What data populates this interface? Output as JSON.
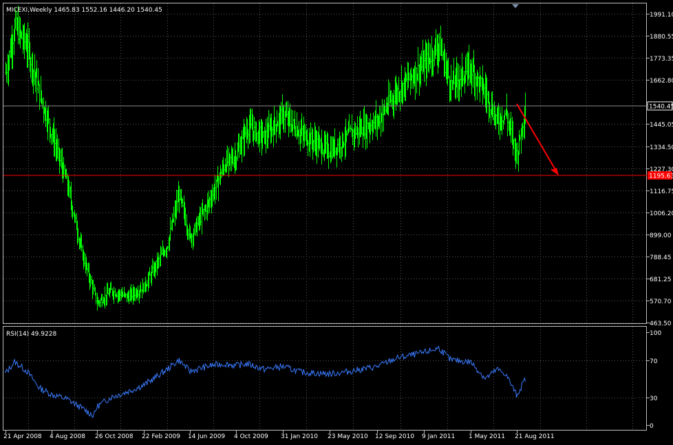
{
  "main": {
    "header": "MICEXI,Weekly  1465.83 1552.16 1446.20 1540.45",
    "symbol": "MICEXI",
    "timeframe": "Weekly",
    "ohlc": {
      "open": 1465.83,
      "high": 1552.16,
      "low": 1446.2,
      "close": 1540.45
    },
    "current_price_label": "1540.45",
    "level_label": "1195.63",
    "level_value": 1195.63,
    "y_ticks": [
      "1991.10",
      "1880.55",
      "1773.35",
      "1662.80",
      "1540.45",
      "1445.05",
      "1334.50",
      "1227.30",
      "1116.75",
      "1006.20",
      "899.00",
      "788.45",
      "681.25",
      "570.70",
      "463.50"
    ],
    "y_range": [
      463.5,
      1991.1
    ]
  },
  "rsi": {
    "header": "RSI(14) 49.9228",
    "period": 14,
    "value": 49.9228,
    "y_ticks": [
      "100",
      "70",
      "30",
      "0"
    ],
    "y_range": [
      0,
      100
    ]
  },
  "x_ticks": [
    "21 Apr 2008",
    "4 Aug 2008",
    "26 Oct 2008",
    "22 Feb 2009",
    "14 Jun 2009",
    "4 Oct 2009",
    "31 Jan 2010",
    "23 May 2010",
    "12 Sep 2010",
    "9 Jan 2011",
    "1 May 2011",
    "21 Aug 2011"
  ],
  "colors": {
    "background": "#000000",
    "grid": "#5a5a5a",
    "bars": "#00ff00",
    "rsi_line": "#3a7bff",
    "level_line": "#ff0000",
    "arrow": "#ff0000",
    "text": "#ffffff"
  },
  "chart_data": [
    {
      "type": "bar",
      "series": [
        {
          "name": "MICEXI,Weekly",
          "anchors": [
            [
              "21 Apr 2008",
              1700
            ],
            [
              "2008-05-12",
              1930
            ],
            [
              "2008-06-09",
              1830
            ],
            [
              "2008-07-07",
              1600
            ],
            [
              "4 Aug 2008",
              1400
            ],
            [
              "2008-09-01",
              1150
            ],
            [
              "2008-09-29",
              800
            ],
            [
              "26 Oct 2008",
              560
            ],
            [
              "2008-12-01",
              620
            ],
            [
              "2009-01-12",
              590
            ],
            [
              "22 Feb 2009",
              640
            ],
            [
              "2009-04-20",
              850
            ],
            [
              "2009-05-18",
              1100
            ],
            [
              "14 Jun 2009",
              880
            ],
            [
              "2009-08-03",
              1080
            ],
            [
              "2009-09-07",
              1250
            ],
            [
              "4 Oct 2009",
              1290
            ],
            [
              "2009-11-02",
              1430
            ],
            [
              "2009-12-14",
              1380
            ],
            [
              "31 Jan 2010",
              1490
            ],
            [
              "2010-03-15",
              1400
            ],
            [
              "23 May 2010",
              1310
            ],
            [
              "2010-07-12",
              1400
            ],
            [
              "12 Sep 2010",
              1460
            ],
            [
              "2010-11-01",
              1610
            ],
            [
              "9 Jan 2011",
              1740
            ],
            [
              "2011-02-14",
              1840
            ],
            [
              "2011-03-14",
              1640
            ],
            [
              "1 May 2011",
              1720
            ],
            [
              "2011-06-06",
              1600
            ],
            [
              "2011-07-04",
              1460
            ],
            [
              "2011-07-25",
              1500
            ],
            [
              "21 Aug 2011",
              1290
            ],
            [
              "2011-09-11",
              1540
            ]
          ]
        }
      ],
      "title": "",
      "xlabel": "",
      "ylabel": "",
      "ylim": [
        463.5,
        1991.1
      ],
      "grid": true,
      "annotations": [
        "horizontal line 1195.63",
        "downward arrow"
      ]
    },
    {
      "type": "line",
      "series": [
        {
          "name": "RSI(14)",
          "anchors": [
            [
              "21 Apr 2008",
              56
            ],
            [
              "2008-05-12",
              68
            ],
            [
              "2008-06-09",
              58
            ],
            [
              "2008-07-07",
              40
            ],
            [
              "4 Aug 2008",
              33
            ],
            [
              "2008-09-01",
              28
            ],
            [
              "2008-09-29",
              18
            ],
            [
              "2008-10-20",
              10
            ],
            [
              "26 Oct 2008",
              20
            ],
            [
              "2008-12-01",
              30
            ],
            [
              "2009-01-12",
              36
            ],
            [
              "22 Feb 2009",
              43
            ],
            [
              "2009-04-20",
              60
            ],
            [
              "2009-05-18",
              70
            ],
            [
              "14 Jun 2009",
              58
            ],
            [
              "2009-08-03",
              64
            ],
            [
              "2009-09-07",
              66
            ],
            [
              "4 Oct 2009",
              64
            ],
            [
              "2009-11-02",
              66
            ],
            [
              "2009-12-14",
              60
            ],
            [
              "31 Jan 2010",
              63
            ],
            [
              "2010-03-15",
              57
            ],
            [
              "23 May 2010",
              55
            ],
            [
              "2010-07-12",
              58
            ],
            [
              "12 Sep 2010",
              63
            ],
            [
              "2010-11-01",
              72
            ],
            [
              "9 Jan 2011",
              78
            ],
            [
              "2011-02-14",
              83
            ],
            [
              "2011-03-14",
              70
            ],
            [
              "1 May 2011",
              68
            ],
            [
              "2011-06-06",
              50
            ],
            [
              "2011-07-04",
              60
            ],
            [
              "2011-07-25",
              55
            ],
            [
              "21 Aug 2011",
              32
            ],
            [
              "2011-09-11",
              50
            ]
          ]
        }
      ],
      "title": "",
      "xlabel": "",
      "ylabel": "",
      "ylim": [
        0,
        100
      ],
      "grid": true
    }
  ]
}
